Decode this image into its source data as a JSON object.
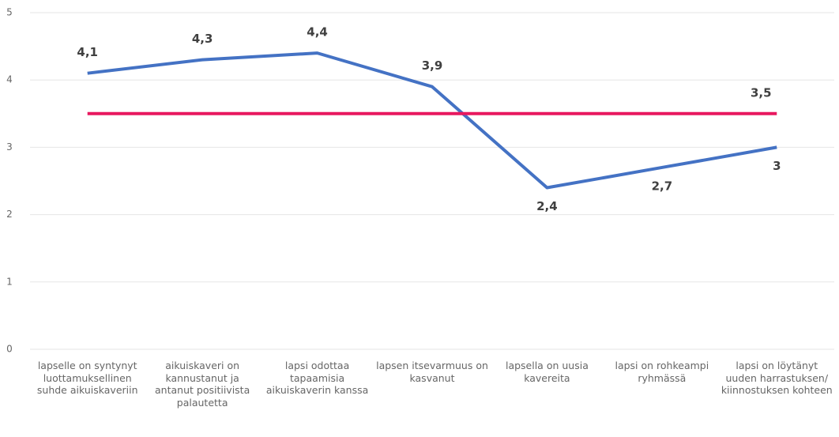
{
  "chart_data": {
    "type": "line",
    "categories": [
      "lapselle on syntynyt luottamuksellinen suhde aikuiskaveriin",
      "aikuiskaveri on kannustanut ja antanut positiivista palautetta",
      "lapsi odottaa tapaamisia aikuiskaverin kanssa",
      "lapsen itsevarmuus on kasvanut",
      "lapsella on uusia kavereita",
      "lapsi on rohkeampi ryhmässä",
      "lapsi on löytänyt uuden harrastuksen/ kiinnostuksen kohteen"
    ],
    "series": [
      {
        "color": "#4472c4",
        "values": [
          4.1,
          4.3,
          4.4,
          3.9,
          2.4,
          2.7,
          3
        ],
        "value_labels": [
          "4,1",
          "4,3",
          "4,4",
          "3,9",
          "2,4",
          "2,7",
          "3"
        ]
      },
      {
        "color": "#e8185f",
        "values": [
          3.5,
          3.5,
          3.5,
          3.5,
          3.5,
          3.5,
          3.5
        ],
        "value_labels": [
          null,
          null,
          null,
          null,
          null,
          null,
          "3,5"
        ]
      }
    ],
    "ylim": [
      0,
      5
    ],
    "yticks": [
      0,
      1,
      2,
      3,
      4,
      5
    ],
    "grid": true
  }
}
